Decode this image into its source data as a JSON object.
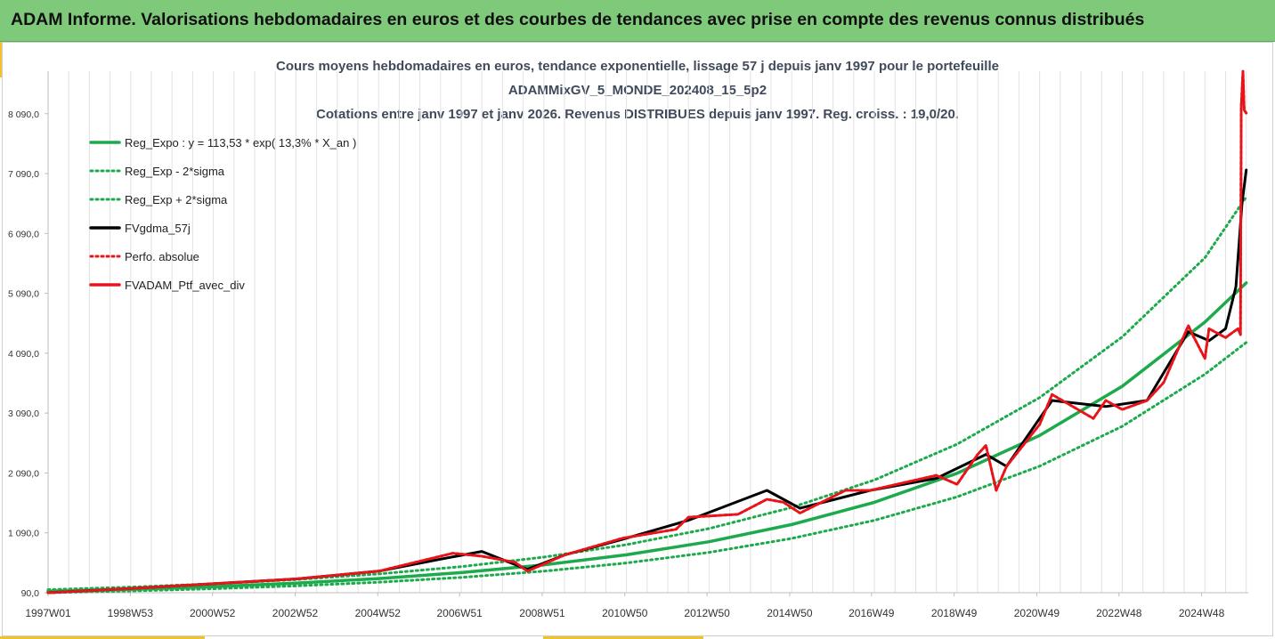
{
  "banner": {
    "title": "ADAM Informe. Valorisations hebdomadaires en euros et des courbes de tendances avec prise en compte des revenus connus distribués"
  },
  "chart_data": {
    "type": "line",
    "title_lines": [
      "Cours moyens hebdomadaires  en euros, tendance exponentielle, lissage 57 j depuis janv 1997 pour le portefeuille",
      "ADAMMixGV_5_MONDE_202408_15_5p2",
      "Cotations entre janv 1997 et janv 2026. Revenus DISTRIBUES depuis janv 1997. Reg. croiss. : 19,0/20."
    ],
    "xlabel": "",
    "ylabel": "",
    "x_range": [
      1997.0,
      2026.05
    ],
    "ylim": [
      90,
      8800
    ],
    "y_ticks": [
      90,
      1090,
      2090,
      3090,
      4090,
      5090,
      6090,
      7090,
      8090
    ],
    "y_tick_labels": [
      "90,0",
      "1 090,0",
      "2 090,0",
      "3 090,0",
      "4 090,0",
      "5 090,0",
      "6 090,0",
      "7 090,0",
      "8 090,0"
    ],
    "x_ticks": [
      1997.0,
      1998.99,
      2000.98,
      2002.98,
      2004.98,
      2006.96,
      2008.96,
      2010.96,
      2012.95,
      2014.95,
      2016.93,
      2018.93,
      2020.93,
      2022.92,
      2024.92
    ],
    "x_tick_labels": [
      "1997W01",
      "1998W53",
      "2000W52",
      "2002W52",
      "2004W52",
      "2006W51",
      "2008W51",
      "2010W50",
      "2012W50",
      "2014W50",
      "2016W49",
      "2018W49",
      "2020W49",
      "2022W48",
      "2024W48"
    ],
    "grid": "vertical",
    "legend_position": "top-left",
    "regression": {
      "a": 113.53,
      "rate": 0.133,
      "sigma_factor": 1.233
    },
    "series": [
      {
        "name": "Reg_Expo : y = 113,53 * exp( 13,3% *  X_an )",
        "color": "#1daa4c",
        "style": "solid",
        "x": [
          1997.0,
          1999,
          2001,
          2003,
          2005,
          2007,
          2009,
          2011,
          2013,
          2015,
          2017,
          2019,
          2021,
          2023,
          2025,
          2026.0
        ],
        "y": [
          114,
          148,
          193,
          251,
          327,
          426,
          555,
          723,
          942,
          1228,
          1600,
          2084,
          2716,
          3538,
          4610,
          5264
        ]
      },
      {
        "name": "Reg_Exp - 2*sigma",
        "color": "#1daa4c",
        "style": "dotted",
        "x": [
          1997.0,
          1999,
          2001,
          2003,
          2005,
          2007,
          2009,
          2011,
          2013,
          2015,
          2017,
          2019,
          2021,
          2023,
          2025,
          2026.0
        ],
        "y": [
          92,
          120,
          157,
          204,
          265,
          346,
          450,
          586,
          764,
          996,
          1298,
          1691,
          2203,
          2870,
          3739,
          4270
        ]
      },
      {
        "name": "Reg_Exp + 2*sigma",
        "color": "#1daa4c",
        "style": "dotted",
        "x": [
          1997.0,
          1999,
          2001,
          2003,
          2005,
          2007,
          2009,
          2011,
          2013,
          2015,
          2017,
          2019,
          2021,
          2023,
          2025,
          2026.0
        ],
        "y": [
          140,
          183,
          238,
          310,
          403,
          526,
          685,
          892,
          1162,
          1514,
          1973,
          2571,
          3349,
          4363,
          5684,
          6700
        ]
      },
      {
        "name": "FVgdma_57j",
        "color": "#000000",
        "style": "solid",
        "x": [
          1997.0,
          1999,
          2001,
          2003,
          2005,
          2006.5,
          2007.5,
          2008.6,
          2009.5,
          2010.9,
          2012.5,
          2014.4,
          2015.2,
          2016.9,
          2018.5,
          2019.7,
          2020.2,
          2021.3,
          2022.6,
          2023.6,
          2024.6,
          2025.1,
          2025.5,
          2025.75,
          2025.9,
          2026.0
        ],
        "y": [
          90,
          160,
          240,
          320,
          450,
          650,
          780,
          480,
          720,
          980,
          1300,
          1800,
          1500,
          1800,
          2000,
          2400,
          2200,
          3300,
          3200,
          3300,
          4450,
          4300,
          4500,
          5200,
          6600,
          7150
        ]
      },
      {
        "name": "Perfo. absolue",
        "color": "#e8141a",
        "style": "dotted",
        "x": [
          1997.0,
          1999,
          2001,
          2003,
          2005,
          2006.8,
          2007.5,
          2008.3,
          2008.6,
          2009.5,
          2010.9,
          2012.2,
          2012.5,
          2013.7,
          2014.4,
          2014.8,
          2015.2,
          2016.3,
          2016.9,
          2018.5,
          2019.0,
          2019.5,
          2019.7,
          2019.95,
          2020.2,
          2021.0,
          2021.3,
          2022.3,
          2022.6,
          2023.0,
          2023.6,
          2024.0,
          2024.6,
          2024.7,
          2025.0,
          2025.1,
          2025.5,
          2025.8,
          2025.86,
          2025.88,
          2025.92,
          2025.95,
          2026.0
        ],
        "y": [
          90,
          160,
          240,
          320,
          450,
          750,
          700,
          600,
          450,
          720,
          1000,
          1150,
          1350,
          1400,
          1650,
          1600,
          1420,
          1800,
          1800,
          2050,
          1900,
          2400,
          2550,
          1800,
          2200,
          2900,
          3400,
          3000,
          3300,
          3150,
          3300,
          3600,
          4550,
          4400,
          4000,
          4500,
          4350,
          4500,
          4400,
          8200,
          8800,
          8150,
          8100
        ]
      },
      {
        "name": "FVADAM_Ptf_avec_div",
        "color": "#e8141a",
        "style": "solid",
        "x": [
          1997.0,
          1999,
          2001,
          2003,
          2005,
          2006.8,
          2007.5,
          2008.3,
          2008.6,
          2009.5,
          2010.9,
          2012.2,
          2012.5,
          2013.7,
          2014.4,
          2014.8,
          2015.2,
          2016.3,
          2016.9,
          2018.5,
          2019.0,
          2019.5,
          2019.7,
          2019.95,
          2020.2,
          2021.0,
          2021.3,
          2022.3,
          2022.6,
          2023.0,
          2023.6,
          2024.0,
          2024.6,
          2024.7,
          2025.0,
          2025.1,
          2025.5,
          2025.8,
          2025.86,
          2025.88,
          2025.92,
          2025.95,
          2026.0
        ],
        "y": [
          90,
          160,
          240,
          320,
          450,
          750,
          700,
          600,
          450,
          720,
          1000,
          1150,
          1350,
          1400,
          1650,
          1600,
          1420,
          1800,
          1800,
          2050,
          1900,
          2400,
          2550,
          1800,
          2200,
          2900,
          3400,
          3000,
          3300,
          3150,
          3300,
          3600,
          4550,
          4400,
          4000,
          4500,
          4350,
          4500,
          4400,
          8200,
          8800,
          8150,
          8100
        ]
      }
    ],
    "legend": [
      {
        "label": "Reg_Expo : y = 113,53 * exp( 13,3% *  X_an )",
        "color": "#1daa4c",
        "style": "solid"
      },
      {
        "label": "Reg_Exp - 2*sigma",
        "color": "#1daa4c",
        "style": "dotted"
      },
      {
        "label": "Reg_Exp + 2*sigma",
        "color": "#1daa4c",
        "style": "dotted"
      },
      {
        "label": "FVgdma_57j",
        "color": "#000000",
        "style": "solid"
      },
      {
        "label": "Perfo. absolue",
        "color": "#e8141a",
        "style": "dotted"
      },
      {
        "label": "FVADAM_Ptf_avec_div",
        "color": "#e8141a",
        "style": "solid"
      }
    ]
  },
  "colors": {
    "banner_bg": "#7fc97a",
    "accent_yellow": "#f2c12e",
    "regression_green": "#1daa4c",
    "portfolio_red": "#e8141a",
    "smoothing_black": "#000000"
  }
}
